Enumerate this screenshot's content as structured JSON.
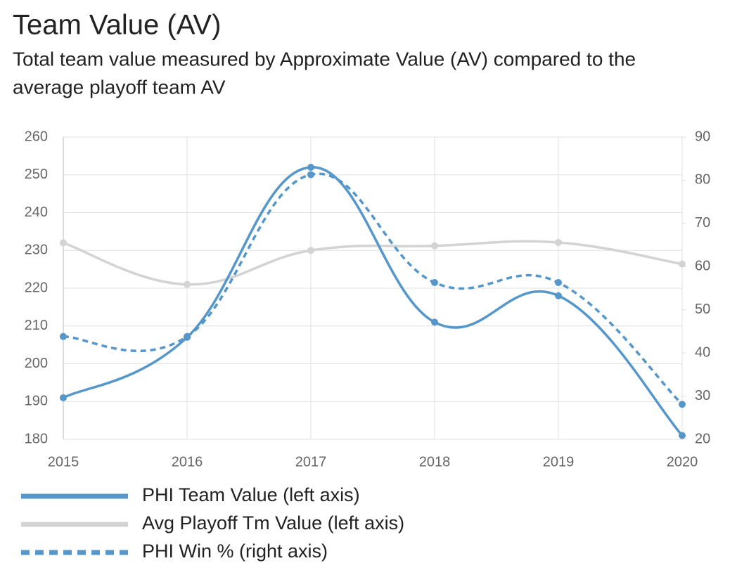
{
  "chart_data": {
    "type": "line",
    "title": "Team Value (AV)",
    "subtitle": [
      "Total team value measured by Approximate Value (AV) compared to the",
      "average playoff team AV"
    ],
    "categories": [
      "2015",
      "2016",
      "2017",
      "2018",
      "2019",
      "2020"
    ],
    "series": [
      {
        "name": "PHI Team Value (left axis)",
        "color": "#5596cb",
        "style": "solid",
        "values": [
          191,
          207,
          252,
          211,
          218,
          181
        ]
      },
      {
        "name": "Avg Playoff Tm Value (left axis)",
        "color": "#d3d3d3",
        "style": "solid",
        "values": [
          232,
          221,
          230,
          231.2,
          232.1,
          226.4
        ]
      },
      {
        "name": "PHI Win % (right axis)",
        "color": "#5596cb",
        "style": "dashed",
        "axis": "y2",
        "values": [
          43.8,
          43.8,
          81.3,
          56.3,
          56.3,
          28.1
        ]
      }
    ],
    "ylim": [
      180,
      260
    ],
    "yticks": [
      180,
      190,
      200,
      210,
      220,
      230,
      240,
      250,
      260
    ],
    "y2lim": [
      20,
      90
    ],
    "y2ticks": [
      20,
      30,
      40,
      50,
      60,
      70,
      80,
      90
    ],
    "grid": true,
    "legend": "bottom"
  }
}
